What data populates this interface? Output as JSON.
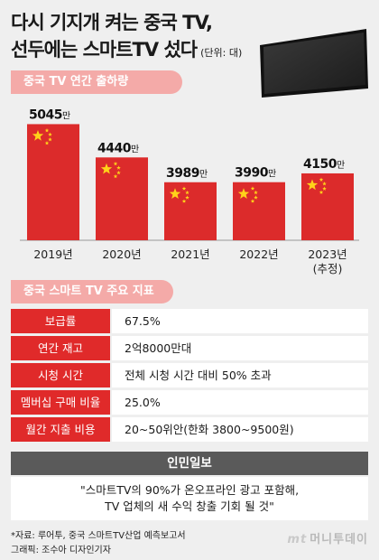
{
  "header": {
    "title_line1": "다시 기지개 켜는 중국 TV,",
    "title_line2": "선두에는 스마트TV 섰다",
    "unit": "(단위: 대)"
  },
  "section1": {
    "label": "중국 TV 연간 출하량"
  },
  "chart_data": {
    "type": "bar",
    "title": "중국 TV 연간 출하량",
    "unit": "(단위: 대)",
    "categories": [
      "2019년",
      "2020년",
      "2021년",
      "2022년",
      "2023년\n(추정)"
    ],
    "values": [
      5045,
      4440,
      3989,
      3990,
      4150
    ],
    "value_labels": [
      "5045만",
      "4440만",
      "3989만",
      "3990만",
      "4150만"
    ],
    "value_unit": "만",
    "bar_color": "#dc2b2b",
    "star_color": "#ffd21a",
    "ylim": [
      3000,
      5200
    ],
    "grid": false
  },
  "section2": {
    "label": "중국 스마트 TV 주요 지표"
  },
  "indicators": [
    {
      "key": "보급률",
      "value": "67.5%"
    },
    {
      "key": "연간 재고",
      "value": "2억8000만대"
    },
    {
      "key": "시청 시간",
      "value": "전체 시청 시간 대비 50% 초과"
    },
    {
      "key": "멤버십 구매 비율",
      "value": "25.0%"
    },
    {
      "key": "월간 지출 비용",
      "value": "20~50위안(한화 3800~9500원)"
    }
  ],
  "source_box": {
    "name": "인민일보",
    "quote": "\"스마트TV의 90%가 온오프라인 광고 포함해,\nTV 업체의 새 수익 창출 기회 될 것\""
  },
  "footer": {
    "note1": "*자료: 루어투, 중국 스마트TV산업 예측보고서",
    "note2": "그래픽: 조수아 디자인기자",
    "logo_mark": "mt",
    "logo_text": "머니투데이"
  },
  "colors": {
    "accent": "#e02a2a",
    "pill": "#f4aaa8",
    "dark": "#5a5a5a"
  }
}
